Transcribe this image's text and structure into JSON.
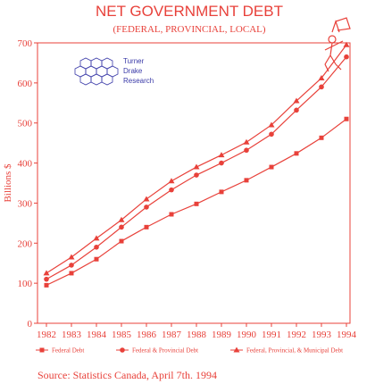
{
  "colors": {
    "accent": "#e8413a",
    "logo": "#3a3aa8"
  },
  "logo": {
    "lines": [
      "Turner",
      "Drake",
      "Research"
    ]
  },
  "source": "Source: Statistics Canada, April 7th. 1994",
  "chart_data": {
    "type": "line",
    "title": "NET GOVERNMENT DEBT",
    "subtitle": "(FEDERAL, PROVINCIAL, LOCAL)",
    "xlabel": "",
    "ylabel": "Billions $",
    "ylim": [
      0,
      700
    ],
    "yticks": [
      0,
      100,
      200,
      300,
      400,
      500,
      600,
      700
    ],
    "grid": false,
    "legend_position": "bottom",
    "categories": [
      "1982",
      "1983",
      "1984",
      "1985",
      "1986",
      "1987",
      "1988",
      "1989",
      "1990",
      "1991",
      "1992",
      "1993",
      "1994"
    ],
    "series": [
      {
        "name": "Federal Debt",
        "values": [
          95,
          125,
          160,
          205,
          240,
          272,
          298,
          328,
          357,
          390,
          424,
          463,
          510
        ]
      },
      {
        "name": "Federal & Provincial Debt",
        "values": [
          110,
          145,
          190,
          240,
          290,
          333,
          370,
          400,
          432,
          472,
          532,
          590,
          665
        ]
      },
      {
        "name": "Federal, Provincial, & Municipal Debt",
        "values": [
          125,
          165,
          212,
          258,
          310,
          355,
          390,
          420,
          452,
          495,
          555,
          612,
          695
        ]
      }
    ]
  }
}
